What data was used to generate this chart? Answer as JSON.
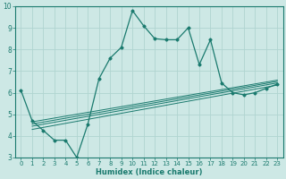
{
  "xlabel": "Humidex (Indice chaleur)",
  "xlim": [
    -0.5,
    23.5
  ],
  "ylim": [
    3,
    10
  ],
  "xtick_positions": [
    0,
    1,
    2,
    3,
    4,
    5,
    6,
    7,
    8,
    9,
    10,
    11,
    12,
    13,
    14,
    15,
    16,
    17,
    18,
    19,
    20,
    21,
    22,
    23
  ],
  "xtick_labels": [
    "0",
    "1",
    "2",
    "3",
    "4",
    "5",
    "6",
    "7",
    "8",
    "9",
    "10",
    "11",
    "12",
    "13",
    "14",
    "15",
    "16",
    "17",
    "18",
    "19",
    "20",
    "21",
    "22",
    "23"
  ],
  "ytick_positions": [
    3,
    4,
    5,
    6,
    7,
    8,
    9,
    10
  ],
  "ytick_labels": [
    "3",
    "4",
    "5",
    "6",
    "7",
    "8",
    "9",
    "10"
  ],
  "bg_color": "#cde8e5",
  "line_color": "#1a7a6e",
  "grid_color": "#b0d4d0",
  "main_curve": {
    "x": [
      0,
      1,
      2,
      3,
      4,
      5,
      6,
      7,
      8,
      9,
      10,
      11,
      12,
      13,
      14,
      15,
      16,
      17,
      18,
      19,
      20,
      21,
      22,
      23
    ],
    "y": [
      6.1,
      4.7,
      4.25,
      3.8,
      3.8,
      3.0,
      4.55,
      6.65,
      7.6,
      8.1,
      9.8,
      9.1,
      8.5,
      8.45,
      8.45,
      9.0,
      7.3,
      8.45,
      6.45,
      6.0,
      5.9,
      6.0,
      6.2,
      6.4
    ]
  },
  "linear_curves": [
    {
      "x": [
        1,
        23
      ],
      "y": [
        4.3,
        6.35
      ]
    },
    {
      "x": [
        1,
        23
      ],
      "y": [
        4.45,
        6.45
      ]
    },
    {
      "x": [
        1,
        23
      ],
      "y": [
        4.55,
        6.52
      ]
    },
    {
      "x": [
        1,
        23
      ],
      "y": [
        4.65,
        6.58
      ]
    }
  ]
}
